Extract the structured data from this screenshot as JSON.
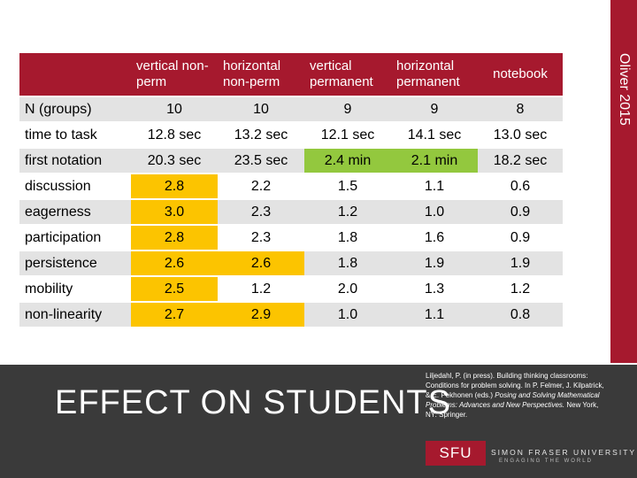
{
  "side_label": "Oliver 2015",
  "table": {
    "headers": [
      "",
      "vertical non-perm",
      "horizontal non-perm",
      "vertical permanent",
      "horizontal permanent",
      "notebook"
    ],
    "rows": [
      {
        "label": "N (groups)",
        "values": [
          "10",
          "10",
          "9",
          "9",
          "8"
        ]
      },
      {
        "label": "time to task",
        "values": [
          "12.8 sec",
          "13.2 sec",
          "12.1 sec",
          "14.1 sec",
          "13.0 sec"
        ]
      },
      {
        "label": "first notation",
        "values": [
          "20.3 sec",
          "23.5 sec",
          "2.4 min",
          "2.1 min",
          "18.2 sec"
        ]
      },
      {
        "label": "discussion",
        "values": [
          "2.8",
          "2.2",
          "1.5",
          "1.1",
          "0.6"
        ]
      },
      {
        "label": "eagerness",
        "values": [
          "3.0",
          "2.3",
          "1.2",
          "1.0",
          "0.9"
        ]
      },
      {
        "label": "participation",
        "values": [
          "2.8",
          "2.3",
          "1.8",
          "1.6",
          "0.9"
        ]
      },
      {
        "label": "persistence",
        "values": [
          "2.6",
          "2.6",
          "1.8",
          "1.9",
          "1.9"
        ]
      },
      {
        "label": "mobility",
        "values": [
          "2.5",
          "1.2",
          "2.0",
          "1.3",
          "1.2"
        ]
      },
      {
        "label": "non-linearity",
        "values": [
          "2.7",
          "2.9",
          "1.0",
          "1.1",
          "0.8"
        ]
      }
    ]
  },
  "colors": {
    "accent_red": "#a6192e",
    "highlight_green": "#93c83e",
    "highlight_yellow": "#fcc400",
    "band_dark": "#3a3a3a"
  },
  "footer": {
    "title": "EFFECT ON STUDENTS",
    "citation_line1": "Liljedahl, P. (in press). Building thinking classrooms: Conditions for problem solving. In P. Felmer, J. Kilpatrick, & E. Pekhonen (eds.)",
    "citation_italic": "Posing and Solving Mathematical Problems: Advances and New Perspectives.",
    "citation_end": "New York, NY: Springer.",
    "logo_text": "SFU",
    "university_name": "SIMON FRASER UNIVERSITY",
    "university_tagline": "ENGAGING THE WORLD"
  }
}
